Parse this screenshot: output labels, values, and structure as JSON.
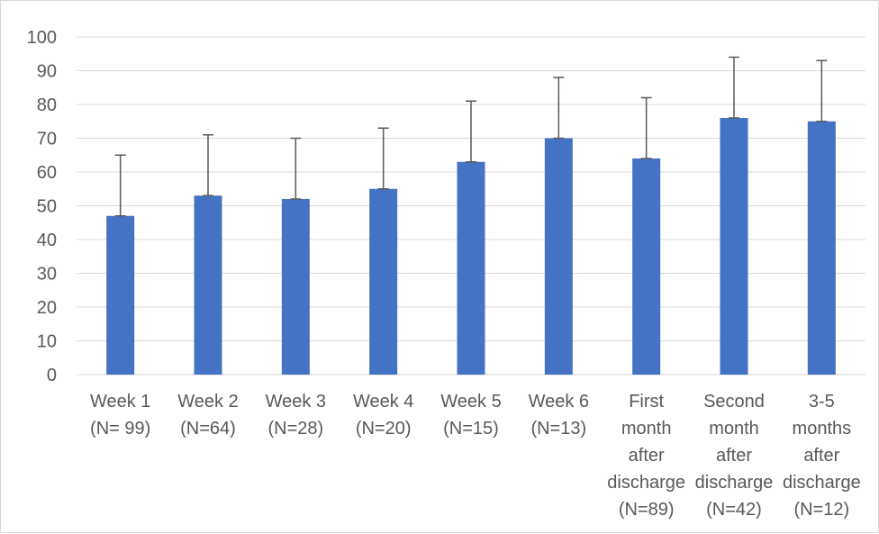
{
  "chart_data": {
    "type": "bar",
    "title": "",
    "xlabel": "",
    "ylabel": "",
    "ylim": [
      0,
      100
    ],
    "yticks": [
      0,
      10,
      20,
      30,
      40,
      50,
      60,
      70,
      80,
      90,
      100
    ],
    "grid": true,
    "legend": "none",
    "bar_color": "#4472c4",
    "errorbar_color": "#595959",
    "categories": [
      [
        "Week 1",
        "(N= 99)"
      ],
      [
        "Week 2",
        "(N=64)"
      ],
      [
        "Week 3",
        "(N=28)"
      ],
      [
        "Week 4",
        "(N=20)"
      ],
      [
        "Week 5",
        "(N=15)"
      ],
      [
        "Week 6",
        "(N=13)"
      ],
      [
        "First",
        "month",
        "after",
        "discharge",
        "(N=89)"
      ],
      [
        "Second",
        "month",
        "after",
        "discharge",
        "(N=42)"
      ],
      [
        "3-5",
        "months",
        "after",
        "discharge",
        "(N=12)"
      ]
    ],
    "values": [
      47,
      53,
      52,
      55,
      63,
      70,
      64,
      76,
      75
    ],
    "error_upper": [
      65,
      71,
      70,
      73,
      81,
      88,
      82,
      94,
      93
    ]
  }
}
